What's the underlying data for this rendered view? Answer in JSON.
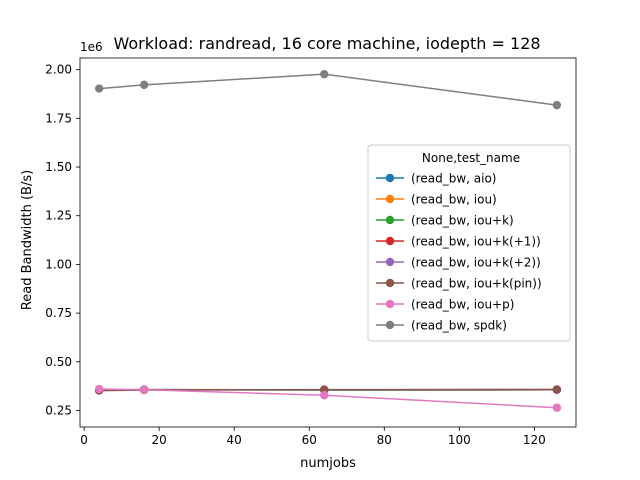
{
  "chart_data": {
    "type": "line",
    "title": "Workload: randread, 16 core machine, iodepth = 128",
    "xlabel": "numjobs",
    "ylabel": "Read Bandwidth (B/s)",
    "y_offset_label": "1e6",
    "y_scale_factor": 1000000,
    "xlim": [
      -1.1,
      131.1
    ],
    "ylim": [
      0.165,
      2.06
    ],
    "xticks": [
      0,
      20,
      40,
      60,
      80,
      100,
      120
    ],
    "yticks": [
      0.25,
      0.5,
      0.75,
      1.0,
      1.25,
      1.5,
      1.75,
      2.0
    ],
    "ytick_labels": [
      "0.25",
      "0.50",
      "0.75",
      "1.00",
      "1.25",
      "1.50",
      "1.75",
      "2.00"
    ],
    "grid": false,
    "legend": {
      "title": "None,test_name",
      "placement": "center-right"
    },
    "x": [
      4,
      16,
      64,
      126
    ],
    "series": [
      {
        "name": "(read_bw, aio)",
        "color": "#1f77b4",
        "values": [
          0.355,
          0.357,
          0.355,
          0.356
        ]
      },
      {
        "name": "(read_bw, iou)",
        "color": "#ff7f0e",
        "values": [
          0.356,
          0.357,
          0.356,
          0.357
        ]
      },
      {
        "name": "(read_bw, iou+k)",
        "color": "#2ca02c",
        "values": [
          0.354,
          0.356,
          0.355,
          0.356
        ]
      },
      {
        "name": "(read_bw, iou+k(+1))",
        "color": "#d62728",
        "values": [
          0.353,
          0.356,
          0.356,
          0.357
        ]
      },
      {
        "name": "(read_bw, iou+k(+2))",
        "color": "#9467bd",
        "values": [
          0.354,
          0.357,
          0.356,
          0.357
        ]
      },
      {
        "name": "(read_bw, iou+k(pin))",
        "color": "#8c564b",
        "values": [
          0.352,
          0.355,
          0.357,
          0.357
        ]
      },
      {
        "name": "(read_bw, iou+p)",
        "color": "#e377c2",
        "values": [
          0.36,
          0.356,
          0.328,
          0.264
        ]
      },
      {
        "name": "(read_bw, spdk)",
        "color": "#7f7f7f",
        "values": [
          1.903,
          1.922,
          1.977,
          1.818
        ]
      }
    ]
  }
}
